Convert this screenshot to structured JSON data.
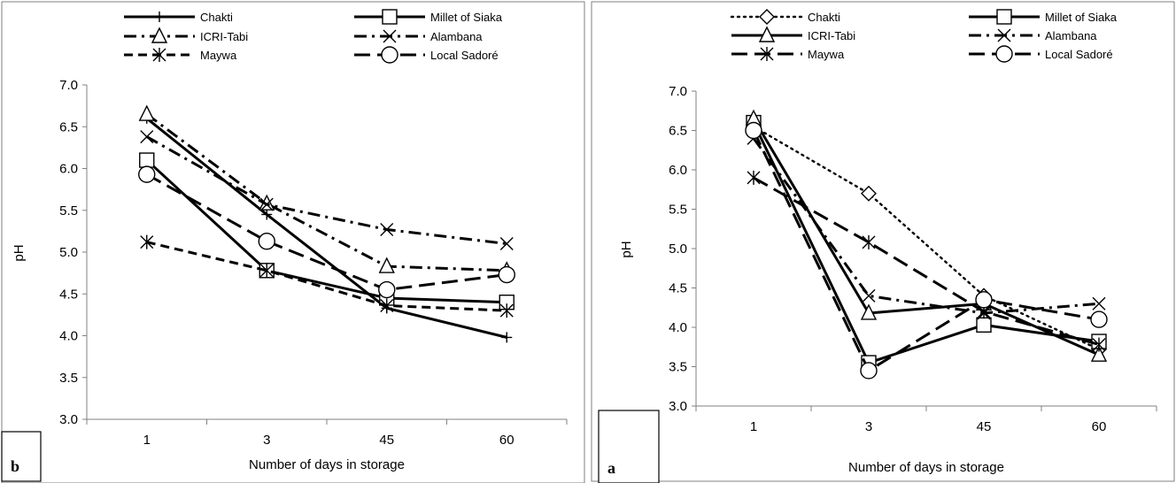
{
  "chart_data": [
    {
      "type": "line",
      "panel_label": "b",
      "categories": [
        "1",
        "3",
        "45",
        "60"
      ],
      "xlabel": "Number of days in storage",
      "ylabel": "pH",
      "ylim": [
        3.0,
        7.0
      ],
      "yticks": [
        "3.0",
        "3.5",
        "4.0",
        "4.5",
        "5.0",
        "5.5",
        "6.0",
        "6.5",
        "7.0"
      ],
      "grid": false,
      "legend_placement": "top",
      "series": [
        {
          "name": "Chakti",
          "values": [
            6.6,
            5.45,
            4.33,
            3.98
          ],
          "marker": "plus",
          "dash": "solid"
        },
        {
          "name": "Millet of Siaka",
          "values": [
            6.1,
            4.78,
            4.45,
            4.4
          ],
          "marker": "square",
          "dash": "solid"
        },
        {
          "name": "ICRI-Tabi",
          "values": [
            6.65,
            5.58,
            4.83,
            4.78
          ],
          "marker": "triangle",
          "dash": "dashdot"
        },
        {
          "name": "Alambana",
          "values": [
            6.38,
            5.57,
            5.27,
            5.1
          ],
          "marker": "x",
          "dash": "dashdot"
        },
        {
          "name": "Maywa",
          "values": [
            5.12,
            4.78,
            4.36,
            4.3
          ],
          "marker": "asterisk",
          "dash": "dash"
        },
        {
          "name": "Local Sadoré",
          "values": [
            5.93,
            5.13,
            4.55,
            4.73
          ],
          "marker": "circle",
          "dash": "longdash"
        }
      ]
    },
    {
      "type": "line",
      "panel_label": "a",
      "categories": [
        "1",
        "3",
        "45",
        "60"
      ],
      "xlabel": "Number of days in storage",
      "ylabel": "pH",
      "ylim": [
        3.0,
        7.0
      ],
      "yticks": [
        "3.0",
        "3.5",
        "4.0",
        "4.5",
        "5.0",
        "5.5",
        "6.0",
        "6.5",
        "7.0"
      ],
      "grid": false,
      "legend_placement": "top",
      "series": [
        {
          "name": "Chakti",
          "values": [
            6.55,
            5.7,
            4.4,
            3.72
          ],
          "marker": "diamond",
          "dash": "dot"
        },
        {
          "name": "Millet of Siaka",
          "values": [
            6.6,
            3.55,
            4.03,
            3.82
          ],
          "marker": "square",
          "dash": "solid"
        },
        {
          "name": "ICRI-Tabi",
          "values": [
            6.65,
            4.18,
            4.3,
            3.65
          ],
          "marker": "triangle",
          "dash": "solid"
        },
        {
          "name": "Alambana",
          "values": [
            6.4,
            4.4,
            4.18,
            4.3
          ],
          "marker": "x",
          "dash": "dashdot"
        },
        {
          "name": "Maywa",
          "values": [
            5.9,
            5.08,
            4.2,
            3.78
          ],
          "marker": "asterisk",
          "dash": "longdash"
        },
        {
          "name": "Local Sadoré",
          "values": [
            6.5,
            3.45,
            4.35,
            4.1
          ],
          "marker": "circle",
          "dash": "longdash"
        }
      ]
    }
  ]
}
